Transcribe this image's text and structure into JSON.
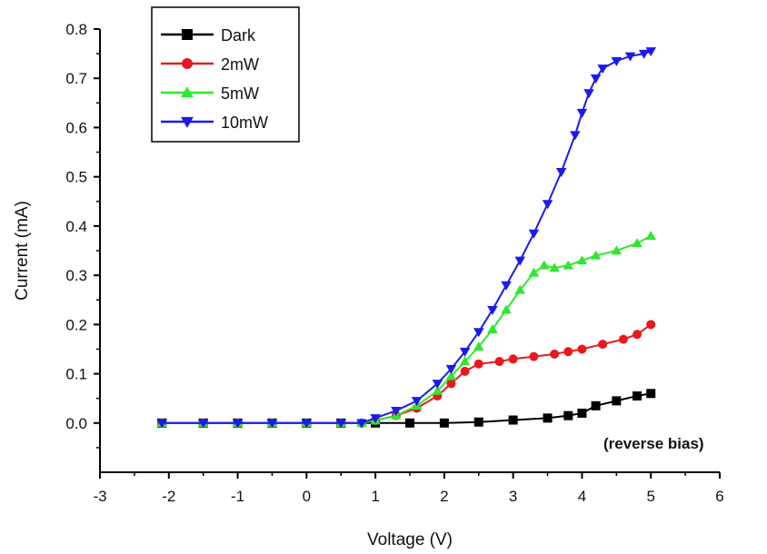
{
  "chart_data": {
    "type": "line",
    "xlabel": "Voltage (V)",
    "ylabel": "Current (mA)",
    "xlim": [
      -3,
      6
    ],
    "ylim": [
      -0.1,
      0.8
    ],
    "xticks": [
      "-3",
      "-2",
      "-1",
      "0",
      "1",
      "2",
      "3",
      "4",
      "5",
      "6"
    ],
    "yticks": [
      "0.0",
      "0.1",
      "0.2",
      "0.3",
      "0.4",
      "0.5",
      "0.6",
      "0.7",
      "0.8"
    ],
    "annotation": "(reverse bias)",
    "legend_position": "top-left",
    "series": [
      {
        "name": "Dark",
        "color": "#000000",
        "marker": "square",
        "x": [
          -2.1,
          -1.5,
          -1.0,
          -0.5,
          0.0,
          0.5,
          1.0,
          1.5,
          2.0,
          2.5,
          3.0,
          3.5,
          3.8,
          4.0,
          4.2,
          4.5,
          4.8,
          5.0
        ],
        "y": [
          0.0,
          0.0,
          0.0,
          0.0,
          0.0,
          0.0,
          0.0,
          0.0,
          0.0,
          0.002,
          0.006,
          0.01,
          0.015,
          0.02,
          0.035,
          0.045,
          0.055,
          0.06
        ]
      },
      {
        "name": "2mW",
        "color": "#e8191e",
        "marker": "circle",
        "x": [
          -2.1,
          -1.5,
          -1.0,
          -0.5,
          0.0,
          0.5,
          0.8,
          1.0,
          1.3,
          1.6,
          1.9,
          2.1,
          2.3,
          2.5,
          2.8,
          3.0,
          3.3,
          3.6,
          3.8,
          4.0,
          4.3,
          4.6,
          4.8,
          5.0
        ],
        "y": [
          0.0,
          0.0,
          0.0,
          0.0,
          0.0,
          0.0,
          0.0,
          0.005,
          0.015,
          0.03,
          0.055,
          0.08,
          0.105,
          0.12,
          0.125,
          0.13,
          0.135,
          0.14,
          0.145,
          0.15,
          0.16,
          0.17,
          0.18,
          0.2
        ]
      },
      {
        "name": "5mW",
        "color": "#2ee82e",
        "marker": "triangle-up",
        "x": [
          -2.1,
          -1.5,
          -1.0,
          -0.5,
          0.0,
          0.5,
          0.8,
          1.0,
          1.3,
          1.6,
          1.9,
          2.1,
          2.3,
          2.5,
          2.7,
          2.9,
          3.1,
          3.3,
          3.45,
          3.6,
          3.8,
          4.0,
          4.2,
          4.5,
          4.8,
          5.0
        ],
        "y": [
          0.0,
          0.0,
          0.0,
          0.0,
          0.0,
          0.0,
          0.0,
          0.005,
          0.015,
          0.035,
          0.065,
          0.095,
          0.125,
          0.155,
          0.19,
          0.23,
          0.27,
          0.305,
          0.32,
          0.315,
          0.32,
          0.33,
          0.34,
          0.35,
          0.365,
          0.38
        ]
      },
      {
        "name": "10mW",
        "color": "#1a1aee",
        "marker": "triangle-down",
        "x": [
          -2.1,
          -1.5,
          -1.0,
          -0.5,
          0.0,
          0.5,
          0.8,
          1.0,
          1.3,
          1.6,
          1.9,
          2.1,
          2.3,
          2.5,
          2.7,
          2.9,
          3.1,
          3.3,
          3.5,
          3.7,
          3.9,
          4.0,
          4.1,
          4.2,
          4.3,
          4.5,
          4.7,
          4.9,
          5.0
        ],
        "y": [
          0.0,
          0.0,
          0.0,
          0.0,
          0.0,
          0.0,
          0.0,
          0.01,
          0.025,
          0.045,
          0.08,
          0.11,
          0.145,
          0.185,
          0.23,
          0.28,
          0.33,
          0.385,
          0.445,
          0.51,
          0.585,
          0.63,
          0.67,
          0.7,
          0.72,
          0.735,
          0.745,
          0.75,
          0.755
        ]
      }
    ]
  }
}
